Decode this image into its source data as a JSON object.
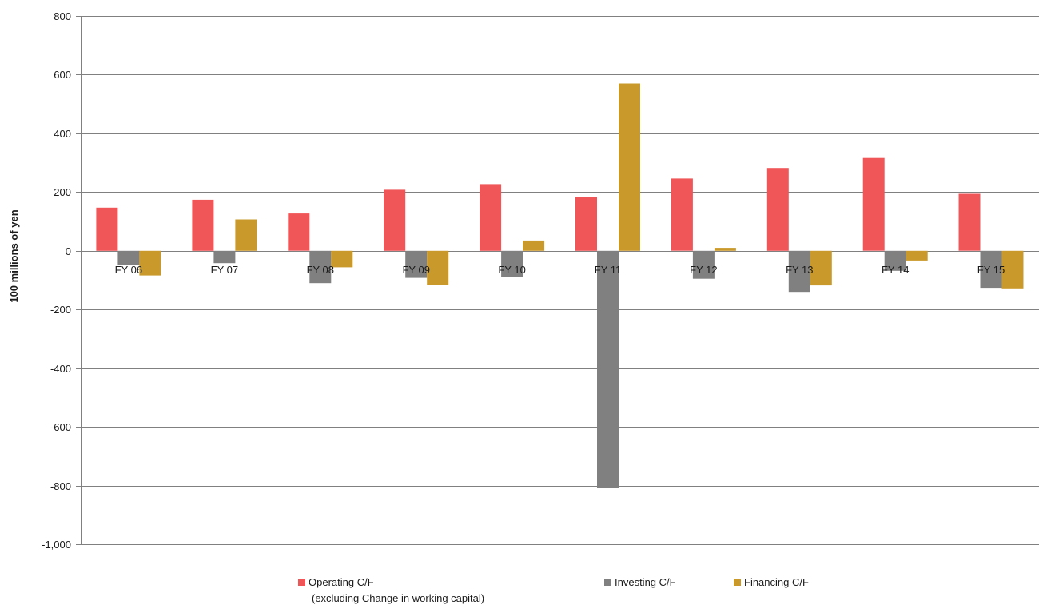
{
  "chart_data": {
    "type": "bar",
    "title": "",
    "xlabel": "",
    "ylabel": "100 millions of yen",
    "ylim": [
      -1000,
      800
    ],
    "yticks": [
      800,
      600,
      400,
      200,
      0,
      -200,
      -400,
      -600,
      -800,
      -1000
    ],
    "ytick_labels": [
      "800",
      "600",
      "400",
      "200",
      "0",
      "-200",
      "-400",
      "-600",
      "-800",
      "-1,000"
    ],
    "grid": true,
    "legend_position": "bottom",
    "categories": [
      "FY 06",
      "FY 07",
      "FY 08",
      "FY 09",
      "FY 10",
      "FY 11",
      "FY 12",
      "FY 13",
      "FY 14",
      "FY 15"
    ],
    "series": [
      {
        "name": "Operating C/F",
        "name_line2": "(excluding Change in working capital)",
        "color": "#f05558",
        "values": [
          147,
          174,
          127,
          208,
          227,
          184,
          246,
          282,
          316,
          194
        ]
      },
      {
        "name": "Investing C/F",
        "color": "#808080",
        "values": [
          -48,
          -42,
          -110,
          -92,
          -90,
          -808,
          -95,
          -140,
          -68,
          -126
        ]
      },
      {
        "name": "Financing C/F",
        "color": "#c9992b",
        "values": [
          -84,
          107,
          -56,
          -117,
          35,
          570,
          10,
          -118,
          -33,
          -128
        ]
      }
    ]
  }
}
